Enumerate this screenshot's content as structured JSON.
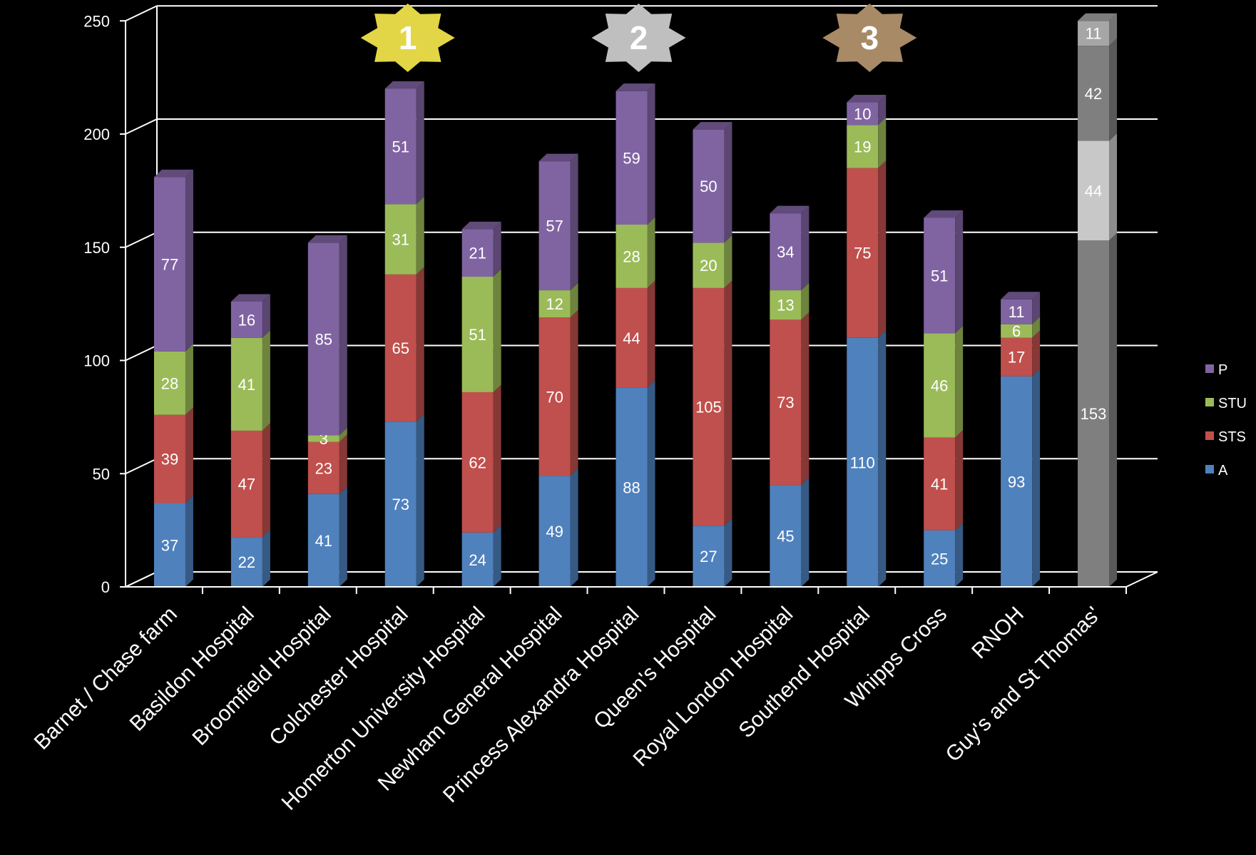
{
  "chart_data": {
    "type": "bar",
    "stacked": true,
    "categories": [
      "Barnet / Chase farm",
      "Basildon Hospital",
      "Broomfield Hospital",
      "Colchester Hospital",
      "Homerton University Hospital",
      "Newham General Hospital",
      "Princess Alexandra Hospital",
      "Queen's Hospital",
      "Royal London Hospital",
      "Southend Hospital",
      "Whipps Cross",
      "RNOH",
      "Guy's and St Thomas'"
    ],
    "series": [
      {
        "name": "A",
        "color": "#4f81bd",
        "values": [
          37,
          22,
          41,
          73,
          24,
          49,
          88,
          27,
          45,
          110,
          25,
          93,
          null
        ]
      },
      {
        "name": "STS",
        "color": "#c0504d",
        "values": [
          39,
          47,
          23,
          65,
          62,
          70,
          44,
          105,
          73,
          75,
          41,
          17,
          null
        ]
      },
      {
        "name": "STU",
        "color": "#9bbb59",
        "values": [
          28,
          41,
          3,
          31,
          51,
          12,
          28,
          20,
          13,
          19,
          46,
          6,
          null
        ]
      },
      {
        "name": "P",
        "color": "#8064a2",
        "values": [
          77,
          16,
          85,
          51,
          21,
          57,
          59,
          50,
          34,
          10,
          51,
          11,
          null
        ]
      }
    ],
    "grey_stack": {
      "category": "Guy's and St Thomas'",
      "values": [
        153,
        44,
        42,
        11
      ],
      "colors": [
        "#7f7f7f",
        "#c8c8c8",
        "#7f7f7f",
        "#a6a6a6"
      ]
    },
    "ylim": [
      0,
      250
    ],
    "yticks": [
      0,
      50,
      100,
      150,
      200,
      250
    ],
    "grid": true,
    "legend_position": "right",
    "rank_badges": [
      {
        "label": "1",
        "category": "Colchester Hospital",
        "color": "#e2d646"
      },
      {
        "label": "2",
        "category": "Princess Alexandra Hospital",
        "color": "#bfbfbf"
      },
      {
        "label": "3",
        "category": "Southend Hospital",
        "color": "#a88a66"
      }
    ]
  }
}
